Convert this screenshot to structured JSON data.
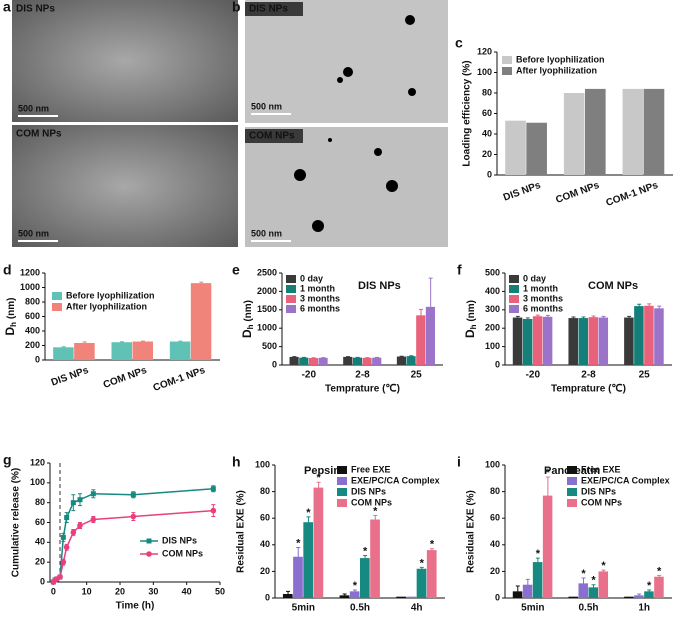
{
  "images": [
    {
      "panel": "a",
      "labels": [
        "DIS NPs",
        "COM NPs"
      ],
      "scale": [
        "500 nm",
        "500 nm"
      ]
    },
    {
      "panel": "b",
      "labels": [
        "DIS NPs",
        "COM NPs"
      ],
      "scale": [
        "500 nm",
        "500 nm"
      ]
    }
  ],
  "chart_data": [
    {
      "panel": "c",
      "type": "bar",
      "ylabel": "Loading efficiency (%)",
      "categories": [
        "DIS NPs",
        "COM NPs",
        "COM-1 NPs"
      ],
      "series": [
        {
          "name": "Before lyophilization",
          "color": "#c8c8c8",
          "values": [
            53,
            80,
            84
          ]
        },
        {
          "name": "After lyophilization",
          "color": "#7f7f7f",
          "values": [
            51,
            84,
            84
          ]
        }
      ],
      "ylim": [
        0,
        120
      ],
      "yticks": [
        0,
        20,
        40,
        60,
        80,
        100,
        120
      ],
      "legend": "upper left"
    },
    {
      "panel": "d",
      "type": "bar",
      "ylabel": [
        "D",
        "h",
        " (nm)"
      ],
      "categories": [
        "DIS NPs",
        "COM NPs",
        "COM-1 NPs"
      ],
      "series": [
        {
          "name": "Before lyophilization",
          "color": "#5fc2b4",
          "values": [
            175,
            245,
            255
          ],
          "errors": [
            8,
            6,
            5
          ]
        },
        {
          "name": "After lyophilization",
          "color": "#f0837a",
          "values": [
            235,
            255,
            1060
          ],
          "errors": [
            15,
            6,
            15
          ]
        }
      ],
      "ylim": [
        0,
        1200
      ],
      "yticks": [
        0,
        200,
        400,
        600,
        800,
        1000,
        1200
      ],
      "legend": "upper left"
    },
    {
      "panel": "e",
      "type": "bar",
      "title": "DIS NPs",
      "ylabel": [
        "D",
        "h",
        " (nm)"
      ],
      "xlabel": "Temprature (℃)",
      "categories": [
        "-20",
        "2-8",
        "25"
      ],
      "series": [
        {
          "name": "0 day",
          "color": "#3a3a3a",
          "values": [
            220,
            220,
            230
          ],
          "errors": [
            8,
            8,
            8
          ]
        },
        {
          "name": "1 month",
          "color": "#137f78",
          "values": [
            200,
            200,
            240
          ],
          "errors": [
            8,
            8,
            10
          ]
        },
        {
          "name": "3 months",
          "color": "#e8627c",
          "values": [
            190,
            195,
            1350
          ],
          "errors": [
            6,
            6,
            160
          ]
        },
        {
          "name": "6 months",
          "color": "#9b74c9",
          "values": [
            195,
            200,
            1580
          ],
          "errors": [
            6,
            6,
            780
          ]
        }
      ],
      "ylim": [
        0,
        2500
      ],
      "yticks": [
        0,
        500,
        1000,
        1500,
        2000,
        2500
      ],
      "legend": "upper left"
    },
    {
      "panel": "f",
      "type": "bar",
      "title": "COM NPs",
      "ylabel": [
        "D",
        "h",
        " (nm)"
      ],
      "xlabel": "Temprature (℃)",
      "categories": [
        "-20",
        "2-8",
        "25"
      ],
      "series": [
        {
          "name": "0 day",
          "color": "#3a3a3a",
          "values": [
            258,
            255,
            258
          ],
          "errors": [
            6,
            6,
            6
          ]
        },
        {
          "name": "1 month",
          "color": "#137f78",
          "values": [
            250,
            255,
            320
          ],
          "errors": [
            6,
            6,
            10
          ]
        },
        {
          "name": "3 months",
          "color": "#e8627c",
          "values": [
            265,
            260,
            322
          ],
          "errors": [
            6,
            6,
            10
          ]
        },
        {
          "name": "6 months",
          "color": "#9b74c9",
          "values": [
            262,
            258,
            308
          ],
          "errors": [
            8,
            6,
            12
          ]
        }
      ],
      "ylim": [
        0,
        500
      ],
      "yticks": [
        0,
        100,
        200,
        300,
        400,
        500
      ],
      "legend": "upper left"
    },
    {
      "panel": "g",
      "type": "line",
      "ylabel": "Cumulative release (%)",
      "xlabel": "Time (h)",
      "x": [
        0,
        0.5,
        1,
        2,
        3,
        4,
        6,
        8,
        12,
        24,
        48
      ],
      "series": [
        {
          "name": "DIS NPs",
          "color": "#168a80",
          "marker": "square",
          "values": [
            0,
            2,
            3,
            5,
            45,
            65,
            80,
            83,
            89,
            88,
            94
          ],
          "errors": [
            0,
            1,
            1,
            2,
            4,
            5,
            8,
            6,
            4,
            3,
            3
          ]
        },
        {
          "name": "COM NPs",
          "color": "#e8407f",
          "marker": "circle",
          "values": [
            0,
            2,
            3,
            5,
            20,
            35,
            50,
            57,
            63,
            66,
            72
          ],
          "errors": [
            0,
            1,
            1,
            1,
            3,
            3,
            3,
            3,
            3,
            4,
            6
          ]
        }
      ],
      "vline": 2,
      "xlim": [
        -1,
        50
      ],
      "xticks": [
        0,
        10,
        20,
        30,
        40,
        50
      ],
      "ylim": [
        0,
        120
      ],
      "yticks": [
        0,
        20,
        40,
        60,
        80,
        100,
        120
      ],
      "legend": "lower right"
    },
    {
      "panel": "h",
      "type": "bar",
      "title": "Pepsin",
      "ylabel": "Residual EXE (%)",
      "categories": [
        "5min",
        "0.5h",
        "4h"
      ],
      "series": [
        {
          "name": "Free EXE",
          "color": "#111111",
          "values": [
            3,
            2,
            1
          ],
          "errors": [
            2,
            1,
            0
          ],
          "stars": [
            null,
            null,
            null
          ]
        },
        {
          "name": "EXE/PC/CA Complex",
          "color": "#8a6fd0",
          "values": [
            31,
            5,
            1
          ],
          "errors": [
            7,
            1,
            0
          ],
          "stars": [
            "*",
            "*",
            null
          ]
        },
        {
          "name": "DIS NPs",
          "color": "#168a80",
          "values": [
            57,
            30,
            22
          ],
          "errors": [
            4,
            2,
            1
          ],
          "stars": [
            "*",
            "*",
            "*"
          ]
        },
        {
          "name": "COM NPs",
          "color": "#e8708a",
          "values": [
            83,
            59,
            36
          ],
          "errors": [
            4,
            3,
            1
          ],
          "stars": [
            "*",
            "*",
            "*"
          ]
        }
      ],
      "ylim": [
        0,
        100
      ],
      "yticks": [
        0,
        20,
        40,
        60,
        80,
        100
      ],
      "legend": "upper left"
    },
    {
      "panel": "i",
      "type": "bar",
      "title": "Pancreatin",
      "ylabel": "Residual EXE (%)",
      "categories": [
        "5min",
        "0.5h",
        "1h"
      ],
      "series": [
        {
          "name": "Free EXE",
          "color": "#111111",
          "values": [
            5,
            1,
            1
          ],
          "errors": [
            4,
            0,
            0
          ],
          "stars": [
            null,
            null,
            null
          ]
        },
        {
          "name": "EXE/PC/CA Complex",
          "color": "#8a6fd0",
          "values": [
            10,
            11,
            2
          ],
          "errors": [
            4,
            4,
            1
          ],
          "stars": [
            null,
            "*",
            null
          ]
        },
        {
          "name": "DIS NPs",
          "color": "#168a80",
          "values": [
            27,
            8,
            5
          ],
          "errors": [
            3,
            2,
            1
          ],
          "stars": [
            "*",
            "*",
            "*"
          ]
        },
        {
          "name": "COM NPs",
          "color": "#e8708a",
          "values": [
            77,
            20,
            16
          ],
          "errors": [
            14,
            1,
            1
          ],
          "stars": [
            "*",
            "*",
            "*"
          ]
        }
      ],
      "ylim": [
        0,
        100
      ],
      "yticks": [
        0,
        20,
        40,
        60,
        80,
        100
      ],
      "legend": "upper left"
    }
  ]
}
